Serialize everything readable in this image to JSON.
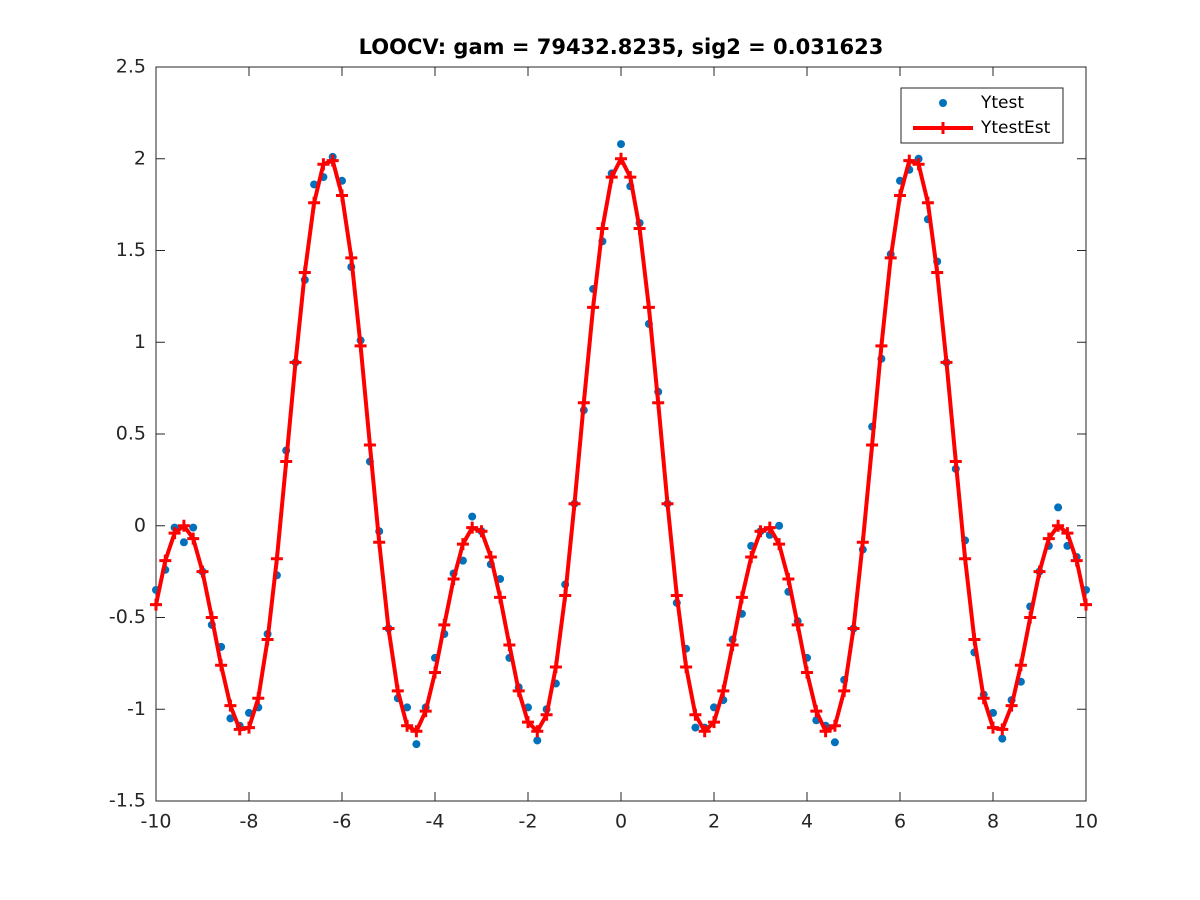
{
  "chart_data": {
    "type": "line",
    "title": "LOOCV: gam = 79432.8235, sig2 = 0.031623",
    "x": [
      -10,
      -9.8,
      -9.6,
      -9.4,
      -9.2,
      -9,
      -8.8,
      -8.6,
      -8.4,
      -8.2,
      -8,
      -7.8,
      -7.6,
      -7.4,
      -7.2,
      -7,
      -6.8,
      -6.6,
      -6.4,
      -6.2,
      -6,
      -5.8,
      -5.6,
      -5.4,
      -5.2,
      -5,
      -4.8,
      -4.6,
      -4.4,
      -4.2,
      -4,
      -3.8,
      -3.6,
      -3.4,
      -3.2,
      -3,
      -2.8,
      -2.6,
      -2.4,
      -2.2,
      -2,
      -1.8,
      -1.6,
      -1.4,
      -1.2,
      -1,
      -0.8,
      -0.6,
      -0.4,
      -0.2,
      0,
      0.2,
      0.4,
      0.6,
      0.8,
      1,
      1.2,
      1.4,
      1.6,
      1.8,
      2,
      2.2,
      2.4,
      2.6,
      2.8,
      3,
      3.2,
      3.4,
      3.6,
      3.8,
      4,
      4.2,
      4.4,
      4.6,
      4.8,
      5,
      5.2,
      5.4,
      5.6,
      5.8,
      6,
      6.2,
      6.4,
      6.6,
      6.8,
      7,
      7.2,
      7.4,
      7.6,
      7.8,
      8,
      8.2,
      8.4,
      8.6,
      8.8,
      9,
      9.2,
      9.4,
      9.6,
      9.8,
      10
    ],
    "series": [
      {
        "name": "Ytest",
        "color": "#0072bd",
        "style": "dots",
        "values": [
          -0.35,
          -0.24,
          -0.01,
          -0.09,
          -0.01,
          -0.25,
          -0.54,
          -0.66,
          -1.05,
          -1.09,
          -1.02,
          -0.99,
          -0.59,
          -0.27,
          0.41,
          0.89,
          1.34,
          1.86,
          1.9,
          2.01,
          1.88,
          1.41,
          1.01,
          0.35,
          -0.03,
          -0.56,
          -0.94,
          -0.99,
          -1.19,
          -0.99,
          -0.72,
          -0.59,
          -0.26,
          -0.19,
          0.05,
          -0.03,
          -0.21,
          -0.29,
          -0.72,
          -0.88,
          -0.99,
          -1.17,
          -1.0,
          -0.86,
          -0.32,
          0.12,
          0.63,
          1.29,
          1.55,
          1.92,
          2.08,
          1.85,
          1.65,
          1.1,
          0.73,
          0.12,
          -0.42,
          -0.67,
          -1.1,
          -1.1,
          -0.99,
          -0.95,
          -0.62,
          -0.48,
          -0.11,
          -0.03,
          -0.05,
          0.0,
          -0.36,
          -0.52,
          -0.72,
          -1.06,
          -1.09,
          -1.18,
          -0.84,
          -0.56,
          -0.13,
          0.54,
          0.91,
          1.48,
          1.88,
          1.94,
          2.0,
          1.67,
          1.44,
          0.89,
          0.31,
          -0.08,
          -0.69,
          -0.92,
          -1.02,
          -1.16,
          -0.95,
          -0.85,
          -0.44,
          -0.25,
          -0.11,
          0.1,
          -0.11,
          -0.17,
          -0.35
        ]
      },
      {
        "name": "YtestEst",
        "color": "#ff0000",
        "style": "line-plus",
        "values": [
          -0.43,
          -0.19,
          -0.04,
          0.0,
          -0.07,
          -0.25,
          -0.5,
          -0.76,
          -0.98,
          -1.11,
          -1.1,
          -0.94,
          -0.62,
          -0.18,
          0.35,
          0.89,
          1.38,
          1.76,
          1.97,
          1.99,
          1.8,
          1.46,
          0.98,
          0.44,
          -0.09,
          -0.56,
          -0.9,
          -1.09,
          -1.12,
          -1.01,
          -0.8,
          -0.54,
          -0.29,
          -0.1,
          -0.01,
          -0.03,
          -0.17,
          -0.39,
          -0.65,
          -0.9,
          -1.07,
          -1.12,
          -1.03,
          -0.77,
          -0.38,
          0.12,
          0.67,
          1.19,
          1.62,
          1.9,
          2,
          1.9,
          1.62,
          1.19,
          0.67,
          0.12,
          -0.38,
          -0.77,
          -1.03,
          -1.12,
          -1.07,
          -0.9,
          -0.65,
          -0.39,
          -0.17,
          -0.03,
          -0.01,
          -0.1,
          -0.29,
          -0.54,
          -0.8,
          -1.01,
          -1.12,
          -1.09,
          -0.9,
          -0.56,
          -0.09,
          0.44,
          0.98,
          1.46,
          1.8,
          1.99,
          1.97,
          1.76,
          1.38,
          0.89,
          0.35,
          -0.18,
          -0.62,
          -0.94,
          -1.1,
          -1.11,
          -0.98,
          -0.76,
          -0.5,
          -0.25,
          -0.07,
          0.0,
          -0.04,
          -0.19,
          -0.43
        ]
      }
    ],
    "xlim": [
      -10,
      10
    ],
    "xticks": [
      -10,
      -8,
      -6,
      -4,
      -2,
      0,
      2,
      4,
      6,
      8,
      10
    ],
    "ylim": [
      -1.5,
      2.5
    ],
    "yticks": [
      -1.5,
      -1,
      -0.5,
      0,
      0.5,
      1,
      1.5,
      2,
      2.5
    ],
    "grid": false,
    "legend": "northeast"
  }
}
